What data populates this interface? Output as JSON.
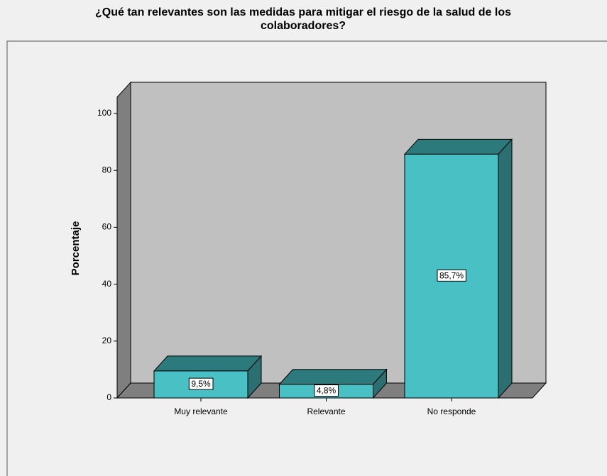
{
  "chart_data": {
    "type": "bar3d",
    "title": "¿Qué tan relevantes son las medidas para mitigar el riesgo de la salud de los colaboradores?",
    "ylabel": "Porcentaje",
    "categories": [
      "Muy relevante",
      "Relevante",
      "No responde"
    ],
    "values": [
      9.5,
      4.8,
      85.7
    ],
    "value_labels": [
      "9,5%",
      "4,8%",
      "85,7%"
    ],
    "color": "#48c0c4",
    "ylim": [
      0,
      100
    ],
    "yticks": [
      0,
      20,
      40,
      60,
      80,
      100
    ]
  }
}
